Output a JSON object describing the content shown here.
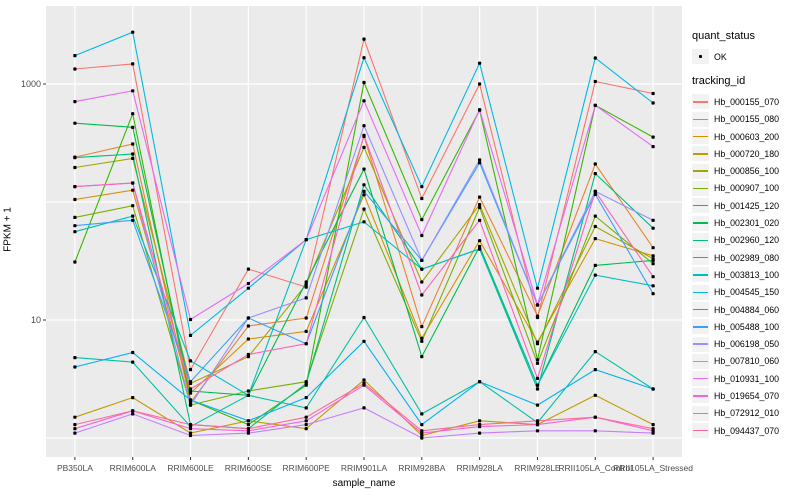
{
  "chart_data": {
    "type": "line",
    "title": "",
    "xlabel": "sample_name",
    "ylabel": "FPKM + 1",
    "y_scale": "log10",
    "y_tick_labels": [
      "1000",
      "10"
    ],
    "y_tick_values": [
      1000,
      10
    ],
    "y_gridline_values": [
      1,
      10,
      100,
      1000
    ],
    "ylim": [
      0.7,
      4400
    ],
    "legend_position": "right",
    "grid": "on",
    "point_marker": "small black dot on every data point",
    "categories": [
      "PB350LA",
      "RRIM600LA",
      "RRIM600LE",
      "RRIM600SE",
      "RRIM600PE",
      "RRIM901LA",
      "RRIM928BA",
      "RRIM928LA",
      "RRIM928LE",
      "RRII105LA_Control",
      "RRII105LA_Stressed"
    ],
    "legend": {
      "quant_status_title": "quant_status",
      "quant_status_items": [
        "OK"
      ],
      "tracking_id_title": "tracking_id"
    },
    "series": [
      {
        "name": "Hb_000155_070",
        "color": "#F8766D",
        "values": [
          1340,
          1480,
          3.8,
          27,
          19,
          2400,
          107,
          1000,
          10.5,
          1050,
          830
        ]
      },
      {
        "name": "Hb_000155_080",
        "color": "#EA8331",
        "values": [
          240,
          310,
          2.0,
          8.9,
          10.4,
          360,
          8.8,
          110,
          10.8,
          210,
          41
        ]
      },
      {
        "name": "Hb_000603_200",
        "color": "#D89000",
        "values": [
          105,
          126,
          2.4,
          6.9,
          8.0,
          115,
          7.0,
          47,
          6.5,
          49,
          35
        ]
      },
      {
        "name": "Hb_000720_180",
        "color": "#C09B00",
        "values": [
          1.5,
          2.2,
          1.1,
          1.4,
          1.2,
          3.1,
          1.05,
          1.4,
          1.3,
          2.3,
          1.3
        ]
      },
      {
        "name": "Hb_000856_100",
        "color": "#A3A500",
        "values": [
          196,
          234,
          2.9,
          4.9,
          20,
          290,
          21,
          95,
          6.3,
          62,
          33
        ]
      },
      {
        "name": "Hb_000907_100",
        "color": "#7CAE00",
        "values": [
          74,
          93,
          1.9,
          2.5,
          3.0,
          87,
          6.6,
          90,
          4.3,
          76,
          30
        ]
      },
      {
        "name": "Hb_001425_120",
        "color": "#39B600",
        "values": [
          31,
          560,
          2.1,
          1.3,
          2.8,
          1030,
          71,
          600,
          4.6,
          660,
          355
        ]
      },
      {
        "name": "Hb_002301_020",
        "color": "#00BB4E",
        "values": [
          465,
          430,
          2.5,
          2.3,
          21,
          190,
          4.9,
          42,
          2.8,
          29,
          32
        ]
      },
      {
        "name": "Hb_002960_120",
        "color": "#00BF7D",
        "values": [
          238,
          255,
          1.3,
          1.2,
          2.9,
          140,
          27,
          40,
          2.6,
          174,
          60
        ]
      },
      {
        "name": "Hb_002989_080",
        "color": "#00C1A3",
        "values": [
          4.8,
          4.4,
          1.25,
          2.3,
          1.8,
          10.5,
          1.6,
          3.0,
          1.35,
          5.4,
          2.6
        ]
      },
      {
        "name": "Hb_003813_100",
        "color": "#00BFC4",
        "values": [
          56,
          76,
          4.5,
          2.3,
          48,
          68,
          27,
          40,
          2.8,
          24,
          19.5
        ]
      },
      {
        "name": "Hb_004545_150",
        "color": "#00BAE0",
        "values": [
          1740,
          2750,
          7.4,
          18.6,
          48,
          1670,
          135,
          1500,
          18.6,
          1660,
          690
        ]
      },
      {
        "name": "Hb_004884_060",
        "color": "#00B0F6",
        "values": [
          4.0,
          5.3,
          2.1,
          1.4,
          2.2,
          6.6,
          1.3,
          3.0,
          1.9,
          3.8,
          2.6
        ]
      },
      {
        "name": "Hb_005488_100",
        "color": "#35A2FF",
        "values": [
          63,
          70,
          3.0,
          10.4,
          6.3,
          123,
          32,
          215,
          13.4,
          116,
          16.7
        ]
      },
      {
        "name": "Hb_006198_050",
        "color": "#9590FF",
        "values": [
          135,
          145,
          1.9,
          10.4,
          15.4,
          443,
          32,
          227,
          13.4,
          123,
          70
        ]
      },
      {
        "name": "Hb_007810_060",
        "color": "#C77CFF",
        "values": [
          1.1,
          1.6,
          1.05,
          1.1,
          1.3,
          1.8,
          1.0,
          1.1,
          1.15,
          1.15,
          1.1
        ]
      },
      {
        "name": "Hb_010931_100",
        "color": "#E76BF3",
        "values": [
          710,
          875,
          10.1,
          20.4,
          48,
          720,
          52,
          606,
          13.4,
          660,
          295
        ]
      },
      {
        "name": "Hb_019654_070",
        "color": "#FA62DB",
        "values": [
          1.2,
          1.7,
          1.2,
          1.15,
          1.4,
          2.8,
          1.1,
          1.25,
          1.3,
          1.5,
          1.15
        ]
      },
      {
        "name": "Hb_072912_010",
        "color": "#FF62BC",
        "values": [
          135,
          145,
          2.6,
          5.1,
          6.3,
          367,
          16.3,
          70,
          3.2,
          123,
          23.3
        ]
      },
      {
        "name": "Hb_094437_070",
        "color": "#FF6A98",
        "values": [
          1.3,
          1.7,
          1.3,
          1.2,
          1.5,
          2.9,
          1.15,
          1.3,
          1.4,
          1.5,
          1.2
        ]
      }
    ],
    "colors": {
      "panel_background": "#EBEBEB",
      "grid": "#FFFFFF",
      "tick_text": "#4D4D4D",
      "axis_title_text": "#000000",
      "point": "#000000",
      "legend_key_background": "#F2F2F2"
    }
  }
}
